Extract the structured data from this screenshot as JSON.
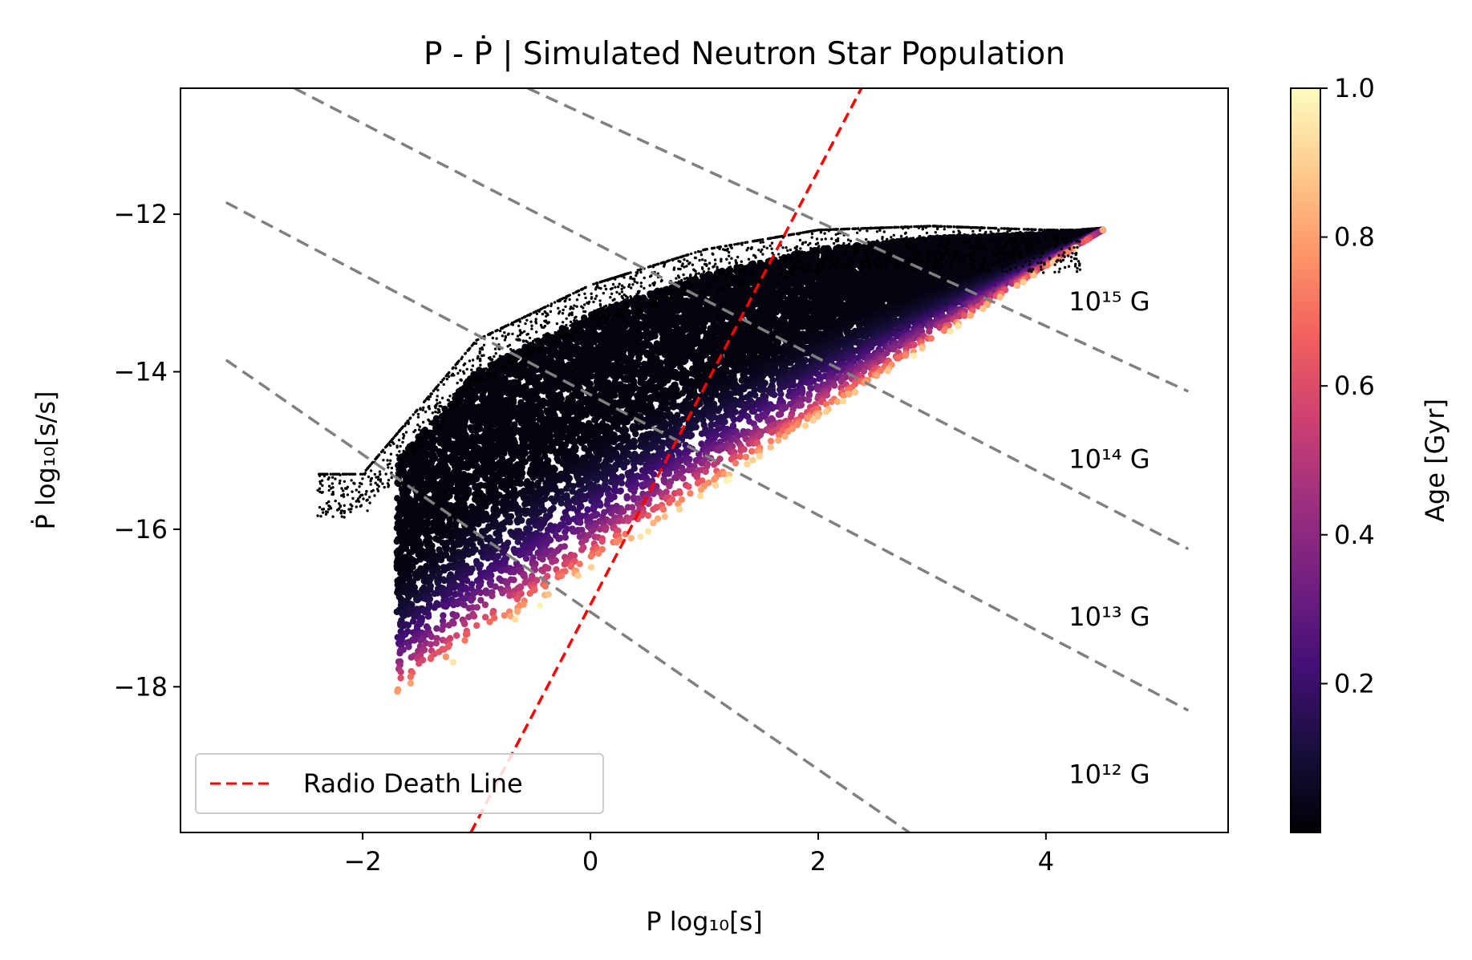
{
  "chart_data": {
    "type": "scatter",
    "title": "P - Ṗ | Simulated Neutron Star Population",
    "xlabel": "P log₁₀[s]",
    "ylabel": "Ṗ log₁₀[s/s]",
    "xlim": [
      -3.6,
      5.6
    ],
    "ylim": [
      -19.85,
      -10.4
    ],
    "x_ticks": [
      -2,
      0,
      2,
      4
    ],
    "y_ticks": [
      -18,
      -16,
      -14,
      -12
    ],
    "grid": false,
    "legend": {
      "placement": "lower-left",
      "entries": [
        {
          "label": "Radio Death Line",
          "color": "#ff0000",
          "style": "dashed"
        }
      ]
    },
    "death_line": {
      "name": "Radio Death Line",
      "color": "#ff0000",
      "points": [
        [
          -1.05,
          -19.85
        ],
        [
          2.38,
          -10.4
        ]
      ]
    },
    "field_lines": {
      "color": "#808080",
      "slope": -1,
      "labels": [
        "10¹⁵ G",
        "10¹⁴ G",
        "10¹³ G",
        "10¹² G"
      ],
      "lines": [
        {
          "field": "10¹⁵ G",
          "points": [
            [
              -0.55,
              -10.4
            ],
            [
              5.25,
              -14.25
            ]
          ]
        },
        {
          "field": "10¹⁴ G",
          "points": [
            [
              -2.6,
              -10.4
            ],
            [
              5.25,
              -16.25
            ]
          ]
        },
        {
          "field": "10¹³ G",
          "points": [
            [
              -3.2,
              -11.85
            ],
            [
              5.25,
              -18.3
            ]
          ]
        },
        {
          "field": "10¹² G",
          "points": [
            [
              -3.2,
              -13.85
            ],
            [
              2.8,
              -19.85
            ]
          ]
        }
      ]
    },
    "colorbar": {
      "label": "Age [Gyr]",
      "colormap": "magma",
      "range": [
        0,
        1.0
      ],
      "ticks": [
        "0.2",
        "0.4",
        "0.6",
        "0.8",
        "1.0"
      ],
      "stops": [
        "#000004",
        "#180f3d",
        "#440f76",
        "#721f81",
        "#9e2f7f",
        "#cd4071",
        "#f1605d",
        "#fd9668",
        "#feca8d",
        "#fcfdbf"
      ]
    },
    "population": {
      "description_note": "dense simulated cloud; lower edge follows spin-down boundary",
      "lower_edge": [
        [
          -1.6,
          -18.1
        ],
        [
          4.5,
          -12.2
        ]
      ],
      "upper_envelope": [
        [
          -2.0,
          -15.3
        ],
        [
          -1.0,
          -13.6
        ],
        [
          0.0,
          -12.9
        ],
        [
          1.0,
          -12.45
        ],
        [
          2.0,
          -12.2
        ],
        [
          3.0,
          -12.15
        ],
        [
          4.0,
          -12.2
        ],
        [
          4.5,
          -12.2
        ]
      ]
    }
  }
}
